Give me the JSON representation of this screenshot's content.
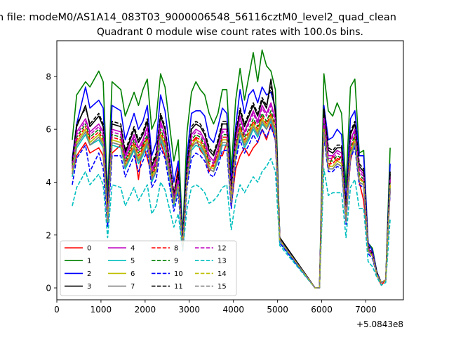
{
  "chart_data": {
    "type": "line",
    "suptitle": "n file: modeM0/AS1A14_083T03_9000006548_56116cztM0_level2_quad_clean",
    "title": "Quadrant 0 module wise count rates with 100.0s bins.",
    "xlabel": "",
    "ylabel": "",
    "offset_label": "+5.0843e8",
    "xlim": [
      0,
      7850
    ],
    "ylim": [
      -0.45,
      9.35
    ],
    "xticks": [
      0,
      1000,
      2000,
      3000,
      4000,
      5000,
      6000,
      7000
    ],
    "xtick_labels": [
      "0",
      "1000",
      "2000",
      "3000",
      "4000",
      "5000",
      "6000",
      "7000"
    ],
    "yticks": [
      0,
      2,
      4,
      6,
      8
    ],
    "ytick_labels": [
      "0",
      "2",
      "4",
      "6",
      "8"
    ],
    "grid": false,
    "legend_position": "lower-left",
    "legend_columns": 4,
    "x": [
      350,
      450,
      650,
      750,
      950,
      1050,
      1150,
      1250,
      1450,
      1550,
      1750,
      1850,
      1950,
      2050,
      2150,
      2250,
      2350,
      2450,
      2650,
      2750,
      2850,
      2950,
      3050,
      3150,
      3250,
      3350,
      3450,
      3550,
      3650,
      3750,
      3850,
      3950,
      4050,
      4150,
      4250,
      4350,
      4450,
      4550,
      4650,
      4750,
      4850,
      4950,
      5050,
      5850,
      5950,
      6050,
      6150,
      6250,
      6350,
      6450,
      6550,
      6650,
      6750,
      6850,
      6950,
      7050,
      7150,
      7250,
      7350,
      7450,
      7550
    ],
    "series": [
      {
        "name": "0",
        "color": "#ff0000",
        "dash": "solid",
        "values": [
          4.3,
          5.0,
          5.5,
          5.1,
          5.3,
          5.0,
          2.9,
          5.1,
          5.4,
          4.5,
          5.3,
          4.1,
          5.5,
          4.9,
          4.3,
          4.9,
          5.5,
          5.0,
          3.5,
          4.6,
          1.7,
          4.0,
          5.3,
          5.7,
          5.2,
          5.0,
          4.4,
          4.7,
          5.0,
          5.0,
          5.5,
          3.1,
          4.5,
          5.0,
          5.3,
          5.0,
          5.3,
          5.5,
          6.0,
          5.6,
          6.2,
          5.6,
          1.9,
          0.0,
          0.0,
          6.2,
          4.5,
          5.0,
          4.8,
          5.0,
          2.6,
          4.8,
          5.5,
          4.0,
          3.3,
          1.5,
          1.2,
          0.5,
          0.1,
          0.3,
          3.7
        ]
      },
      {
        "name": "1",
        "color": "#008000",
        "dash": "solid",
        "values": [
          5.6,
          7.3,
          7.8,
          7.6,
          8.2,
          7.8,
          3.5,
          7.8,
          7.5,
          6.5,
          7.4,
          6.9,
          7.5,
          7.9,
          6.0,
          6.4,
          8.1,
          7.6,
          4.8,
          5.6,
          2.0,
          5.9,
          7.4,
          7.8,
          7.5,
          7.3,
          6.6,
          6.2,
          6.6,
          7.5,
          7.5,
          4.4,
          7.1,
          8.3,
          7.1,
          8.0,
          8.9,
          7.8,
          9.0,
          8.4,
          8.2,
          7.5,
          1.9,
          0.0,
          0.0,
          8.1,
          6.7,
          6.5,
          7.0,
          6.6,
          3.8,
          7.6,
          7.9,
          5.1,
          5.2,
          1.7,
          1.5,
          0.6,
          0.2,
          0.3,
          5.3
        ]
      },
      {
        "name": "2",
        "color": "#0000ff",
        "dash": "solid",
        "values": [
          4.9,
          6.2,
          7.6,
          6.8,
          7.1,
          6.8,
          3.0,
          6.9,
          6.7,
          5.6,
          6.6,
          6.0,
          6.3,
          6.9,
          5.0,
          5.5,
          7.3,
          6.7,
          4.0,
          4.8,
          1.8,
          5.0,
          6.6,
          6.7,
          6.7,
          6.5,
          5.7,
          5.5,
          6.1,
          6.8,
          6.6,
          4.0,
          6.1,
          7.5,
          6.6,
          7.3,
          7.5,
          7.0,
          7.6,
          7.3,
          7.4,
          6.8,
          1.9,
          0.0,
          0.0,
          6.9,
          5.6,
          5.7,
          6.0,
          5.8,
          3.2,
          6.4,
          6.7,
          5.0,
          5.0,
          1.7,
          1.4,
          0.6,
          0.2,
          0.3,
          4.7
        ]
      },
      {
        "name": "3",
        "color": "#000000",
        "dash": "solid",
        "values": [
          4.7,
          6.1,
          6.9,
          6.1,
          6.5,
          6.1,
          2.8,
          6.2,
          6.1,
          5.1,
          6.0,
          5.5,
          5.8,
          6.3,
          4.6,
          5.0,
          6.5,
          6.0,
          3.5,
          4.3,
          1.6,
          4.6,
          6.0,
          6.2,
          6.1,
          5.8,
          5.2,
          5.0,
          5.5,
          6.2,
          6.2,
          3.6,
          5.8,
          6.7,
          6.1,
          6.5,
          6.9,
          6.5,
          7.1,
          6.8,
          7.9,
          6.6,
          1.9,
          0.0,
          0.0,
          6.7,
          5.2,
          5.1,
          5.3,
          5.3,
          2.9,
          5.8,
          6.2,
          4.6,
          4.4,
          1.5,
          1.3,
          0.5,
          0.2,
          0.3,
          4.3
        ]
      },
      {
        "name": "4",
        "color": "#bf00bf",
        "dash": "solid",
        "values": [
          4.6,
          5.9,
          6.4,
          5.9,
          6.2,
          5.9,
          2.7,
          6.0,
          5.9,
          5.0,
          5.8,
          5.3,
          5.6,
          6.1,
          4.5,
          4.8,
          6.3,
          5.8,
          3.4,
          4.2,
          1.6,
          4.4,
          5.8,
          6.0,
          5.9,
          5.6,
          5.0,
          4.8,
          5.3,
          6.0,
          6.0,
          3.5,
          5.6,
          6.5,
          5.9,
          6.3,
          6.7,
          6.3,
          6.9,
          6.6,
          7.0,
          6.4,
          1.8,
          0.0,
          0.0,
          6.5,
          5.0,
          5.0,
          5.2,
          5.1,
          2.8,
          5.6,
          6.0,
          4.5,
          4.3,
          1.5,
          1.3,
          0.5,
          0.2,
          0.3,
          4.2
        ]
      },
      {
        "name": "5",
        "color": "#00bfbf",
        "dash": "solid",
        "values": [
          4.2,
          5.3,
          5.8,
          5.4,
          5.6,
          5.3,
          2.4,
          5.4,
          5.3,
          4.5,
          5.2,
          4.7,
          5.0,
          5.4,
          4.0,
          4.4,
          5.6,
          5.2,
          3.1,
          3.8,
          1.5,
          4.0,
          5.2,
          5.4,
          5.3,
          5.0,
          4.5,
          4.4,
          4.8,
          5.4,
          5.4,
          3.2,
          5.0,
          5.8,
          5.3,
          5.6,
          6.0,
          5.7,
          6.2,
          6.0,
          6.3,
          5.8,
          1.7,
          0.0,
          0.0,
          5.9,
          4.5,
          4.5,
          4.7,
          4.6,
          2.5,
          5.0,
          5.4,
          4.0,
          3.9,
          1.4,
          1.2,
          0.5,
          0.2,
          0.3,
          3.8
        ]
      },
      {
        "name": "6",
        "color": "#bfbf00",
        "dash": "solid",
        "values": [
          4.4,
          5.5,
          6.0,
          5.5,
          5.8,
          5.5,
          2.5,
          5.6,
          5.5,
          4.6,
          5.4,
          4.9,
          5.2,
          5.6,
          4.2,
          4.5,
          5.8,
          5.4,
          3.2,
          3.9,
          1.5,
          4.1,
          5.4,
          5.6,
          5.5,
          5.2,
          4.6,
          4.5,
          5.0,
          5.6,
          5.6,
          3.3,
          5.2,
          6.0,
          5.5,
          5.8,
          6.2,
          5.9,
          6.4,
          6.1,
          6.5,
          6.0,
          1.8,
          0.0,
          0.0,
          6.0,
          4.6,
          4.6,
          4.8,
          4.7,
          2.6,
          5.1,
          5.6,
          4.1,
          4.0,
          1.4,
          1.2,
          0.5,
          0.2,
          0.3,
          3.9
        ]
      },
      {
        "name": "7",
        "color": "#808080",
        "dash": "solid",
        "values": [
          4.3,
          5.4,
          5.9,
          5.4,
          5.7,
          5.4,
          2.5,
          5.5,
          5.4,
          4.6,
          5.3,
          4.8,
          5.1,
          5.5,
          4.1,
          4.4,
          5.7,
          5.3,
          3.2,
          3.9,
          1.5,
          4.0,
          5.3,
          5.5,
          5.4,
          5.1,
          4.5,
          4.4,
          4.9,
          5.5,
          5.5,
          3.2,
          5.1,
          5.9,
          5.4,
          5.7,
          6.1,
          5.8,
          6.3,
          6.0,
          6.4,
          5.9,
          1.8,
          0.0,
          0.0,
          5.9,
          4.5,
          4.5,
          4.7,
          4.6,
          2.5,
          5.0,
          5.5,
          4.0,
          3.9,
          1.4,
          1.2,
          0.5,
          0.2,
          0.3,
          3.8
        ]
      },
      {
        "name": "8",
        "color": "#ff0000",
        "dash": "dashed",
        "values": [
          4.5,
          5.6,
          6.1,
          5.6,
          5.9,
          5.6,
          2.6,
          5.7,
          5.6,
          4.7,
          5.5,
          5.0,
          5.3,
          5.7,
          4.2,
          4.6,
          5.9,
          5.5,
          3.3,
          4.0,
          1.6,
          4.2,
          5.5,
          5.7,
          5.6,
          5.3,
          4.7,
          4.6,
          5.1,
          5.7,
          5.7,
          3.4,
          5.3,
          6.1,
          5.6,
          5.9,
          6.3,
          6.0,
          6.5,
          6.2,
          6.6,
          6.1,
          1.8,
          0.0,
          0.0,
          6.1,
          4.7,
          4.7,
          4.9,
          4.8,
          2.6,
          5.2,
          5.7,
          4.2,
          4.0,
          1.4,
          1.2,
          0.5,
          0.2,
          0.3,
          4.0
        ]
      },
      {
        "name": "9",
        "color": "#008000",
        "dash": "dashed",
        "values": [
          4.6,
          5.7,
          6.2,
          5.7,
          6.0,
          5.7,
          2.6,
          5.8,
          5.7,
          4.8,
          5.6,
          5.1,
          5.4,
          5.8,
          4.3,
          4.7,
          6.0,
          5.6,
          3.3,
          4.0,
          1.6,
          4.3,
          5.6,
          5.8,
          5.7,
          5.4,
          4.8,
          4.7,
          5.2,
          5.8,
          5.8,
          3.4,
          5.4,
          6.2,
          5.7,
          6.0,
          6.4,
          6.1,
          6.6,
          6.3,
          6.7,
          6.2,
          1.8,
          0.0,
          0.0,
          6.2,
          4.8,
          4.8,
          5.0,
          4.9,
          2.7,
          5.3,
          5.8,
          4.3,
          4.1,
          1.5,
          1.2,
          0.5,
          0.2,
          0.3,
          4.1
        ]
      },
      {
        "name": "10",
        "color": "#0000ff",
        "dash": "dashed",
        "values": [
          3.9,
          4.9,
          5.4,
          4.4,
          5.1,
          4.5,
          2.3,
          5.0,
          5.0,
          4.2,
          5.0,
          4.4,
          4.8,
          5.2,
          3.8,
          4.1,
          5.3,
          4.9,
          2.9,
          3.6,
          1.4,
          3.8,
          4.9,
          5.1,
          5.0,
          4.8,
          4.3,
          4.2,
          4.6,
          5.2,
          5.2,
          3.0,
          4.8,
          5.6,
          5.1,
          5.4,
          5.8,
          5.5,
          6.0,
          5.7,
          6.1,
          5.6,
          1.7,
          0.0,
          0.0,
          5.7,
          4.4,
          4.4,
          4.6,
          4.5,
          2.4,
          4.9,
          5.3,
          3.9,
          3.8,
          1.3,
          1.1,
          0.5,
          0.2,
          0.3,
          3.7
        ]
      },
      {
        "name": "11",
        "color": "#000000",
        "dash": "dashed",
        "values": [
          4.8,
          6.2,
          6.8,
          6.2,
          6.6,
          6.2,
          2.9,
          6.3,
          6.2,
          5.2,
          6.1,
          5.6,
          5.9,
          6.4,
          4.7,
          5.1,
          6.6,
          6.1,
          3.6,
          4.4,
          1.7,
          4.7,
          6.1,
          6.3,
          6.2,
          5.9,
          5.3,
          5.1,
          5.6,
          6.3,
          6.3,
          3.7,
          5.9,
          6.8,
          6.2,
          6.6,
          7.0,
          6.6,
          7.2,
          6.9,
          7.6,
          6.7,
          1.9,
          0.0,
          0.0,
          6.8,
          5.3,
          5.2,
          5.4,
          5.4,
          3.0,
          5.9,
          6.3,
          4.7,
          4.5,
          1.6,
          1.3,
          0.6,
          0.2,
          0.3,
          4.4
        ]
      },
      {
        "name": "12",
        "color": "#bf00bf",
        "dash": "dashed",
        "values": [
          4.5,
          5.8,
          6.3,
          5.8,
          6.1,
          5.8,
          2.7,
          5.9,
          5.8,
          4.9,
          5.7,
          5.2,
          5.5,
          6.0,
          4.4,
          4.7,
          6.2,
          5.7,
          3.4,
          4.1,
          1.6,
          4.3,
          5.7,
          5.9,
          5.8,
          5.5,
          4.9,
          4.7,
          5.2,
          5.9,
          5.9,
          3.5,
          5.5,
          6.4,
          5.8,
          6.2,
          6.6,
          6.2,
          6.8,
          6.5,
          6.9,
          6.3,
          1.8,
          0.0,
          0.0,
          6.4,
          4.9,
          4.9,
          5.1,
          5.0,
          2.7,
          5.5,
          5.9,
          4.4,
          4.2,
          1.5,
          1.3,
          0.5,
          0.2,
          0.3,
          4.1
        ]
      },
      {
        "name": "13",
        "color": "#00bfbf",
        "dash": "dashed",
        "values": [
          3.1,
          3.8,
          4.4,
          3.9,
          4.3,
          3.9,
          1.9,
          3.9,
          3.8,
          3.1,
          3.8,
          3.3,
          3.6,
          3.9,
          2.8,
          3.1,
          4.0,
          3.7,
          2.3,
          2.8,
          1.4,
          3.0,
          3.8,
          3.9,
          3.8,
          3.6,
          3.2,
          3.3,
          3.5,
          3.8,
          3.9,
          2.2,
          3.3,
          3.9,
          3.6,
          3.9,
          4.2,
          4.0,
          4.4,
          4.6,
          4.9,
          4.4,
          1.6,
          0.0,
          0.0,
          4.5,
          3.5,
          3.6,
          3.6,
          3.6,
          1.9,
          3.8,
          4.1,
          3.0,
          3.0,
          1.0,
          0.8,
          0.4,
          0.1,
          0.2,
          2.6
        ]
      },
      {
        "name": "14",
        "color": "#bfbf00",
        "dash": "dashed",
        "values": [
          4.4,
          5.5,
          6.0,
          5.5,
          5.8,
          5.5,
          2.5,
          5.6,
          5.5,
          4.6,
          5.4,
          4.9,
          5.2,
          5.6,
          4.2,
          4.5,
          5.8,
          5.4,
          3.2,
          3.9,
          1.5,
          4.1,
          5.4,
          5.6,
          5.5,
          5.2,
          4.6,
          4.5,
          5.0,
          5.6,
          5.6,
          3.3,
          5.2,
          6.0,
          5.5,
          5.8,
          6.2,
          5.9,
          6.4,
          6.1,
          6.5,
          6.0,
          1.8,
          0.0,
          0.0,
          6.0,
          4.6,
          4.6,
          4.8,
          4.7,
          2.6,
          5.1,
          5.6,
          4.1,
          4.0,
          1.4,
          1.2,
          0.5,
          0.2,
          0.3,
          3.9
        ]
      },
      {
        "name": "15",
        "color": "#808080",
        "dash": "dashed",
        "values": [
          4.3,
          5.4,
          5.9,
          5.4,
          5.7,
          5.4,
          2.5,
          5.5,
          5.4,
          4.6,
          5.3,
          4.8,
          5.1,
          5.5,
          4.1,
          4.4,
          5.7,
          5.3,
          3.2,
          3.9,
          1.5,
          4.0,
          5.3,
          5.5,
          5.4,
          5.1,
          4.5,
          4.4,
          4.9,
          5.5,
          5.5,
          3.2,
          5.1,
          5.9,
          5.4,
          5.7,
          6.1,
          5.8,
          6.3,
          6.0,
          6.4,
          5.9,
          1.8,
          0.0,
          0.0,
          5.9,
          4.5,
          4.5,
          4.7,
          4.6,
          2.5,
          5.0,
          5.5,
          4.0,
          3.9,
          1.4,
          1.2,
          0.5,
          0.2,
          0.3,
          3.8
        ]
      }
    ]
  }
}
